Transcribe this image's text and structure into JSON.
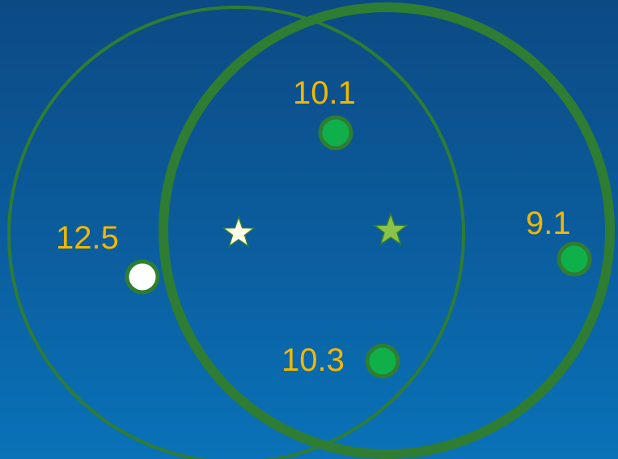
{
  "diagram": {
    "colors": {
      "background_top": "#0c4a84",
      "background_bottom": "#0a72b8",
      "circle_stroke": "#2e7d32",
      "point_fill_green": "#0fb04a",
      "point_fill_white": "#ffffff",
      "point_stroke": "#2e7d32",
      "label_color": "#f2b700",
      "star_white": "#fffde7",
      "star_green": "#8bc34a"
    },
    "circles": [
      {
        "name": "thin-circle",
        "style": "thin"
      },
      {
        "name": "thick-circle",
        "style": "thick"
      }
    ],
    "points": [
      {
        "id": "top",
        "label": "10.1",
        "fill": "green"
      },
      {
        "id": "right",
        "label": "9.1",
        "fill": "green"
      },
      {
        "id": "left",
        "label": "12.5",
        "fill": "white"
      },
      {
        "id": "bottom",
        "label": "10.3",
        "fill": "green"
      }
    ],
    "stars": [
      {
        "id": "center-left",
        "color": "white"
      },
      {
        "id": "center-right",
        "color": "green"
      }
    ]
  }
}
